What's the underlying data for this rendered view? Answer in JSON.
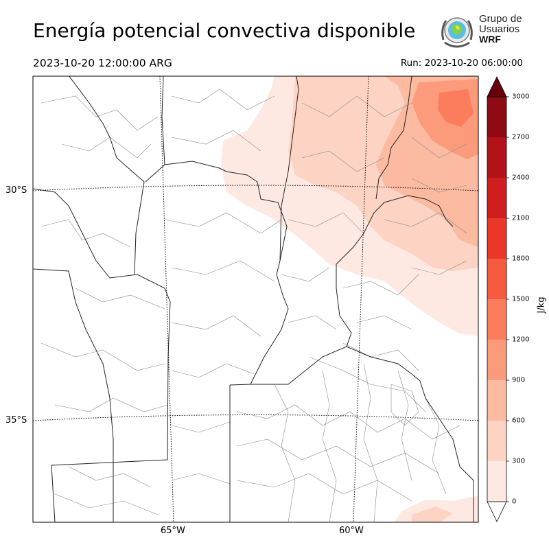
{
  "header": {
    "title": "Energía potencial convectiva disponible",
    "valid_time": "2023-10-20 12:00:00 ARG",
    "run_time": "Run: 2023-10-20 06:00:00"
  },
  "logo": {
    "line1": "Grupo de",
    "line2": "Usuarios",
    "line3": "WRF"
  },
  "map": {
    "lat_labels": [
      "30°S",
      "35°S"
    ],
    "lon_labels": [
      "65°W",
      "60°W"
    ],
    "field": "CAPE",
    "colors": [
      "#fee9e2",
      "#fdd3c3",
      "#fcbba1",
      "#fc9b7b",
      "#fb7d5d",
      "#f65b40",
      "#eb3729",
      "#d01d1e",
      "#b21218",
      "#8e0b13",
      "#67000d"
    ]
  },
  "colorbar": {
    "unit": "J/kg",
    "ticks": [
      "0",
      "300",
      "600",
      "900",
      "1200",
      "1500",
      "1800",
      "2100",
      "2400",
      "2700",
      "3000"
    ],
    "extend": "both"
  }
}
